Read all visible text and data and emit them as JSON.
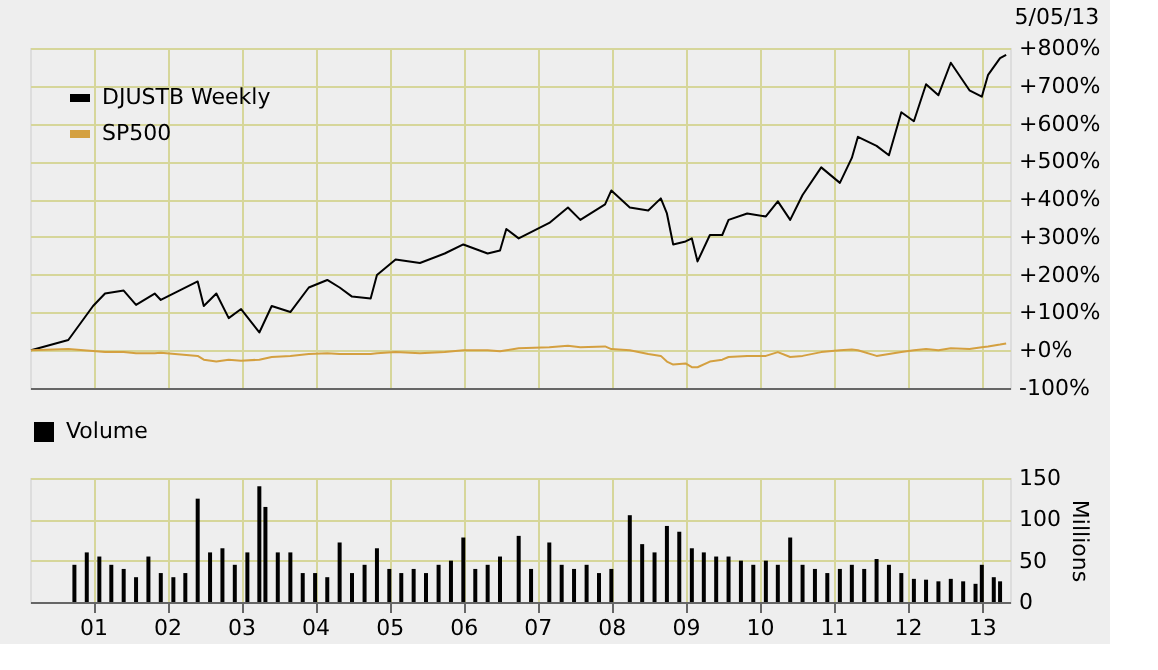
{
  "chart_data": [
    {
      "type": "line",
      "annotations": [
        "5/05/13"
      ],
      "x": [
        "2000-03",
        "2000-09",
        "2001-01",
        "2001-03",
        "2001-06",
        "2001-08",
        "2001-11",
        "2001-12",
        "2002-06",
        "2002-07",
        "2002-09",
        "2002-11",
        "2003-01",
        "2003-04",
        "2003-06",
        "2003-09",
        "2003-12",
        "2004-03",
        "2004-05",
        "2004-07",
        "2004-10",
        "2004-11",
        "2005-02",
        "2005-06",
        "2005-10",
        "2006-01",
        "2006-05",
        "2006-07",
        "2006-08",
        "2006-10",
        "2007-03",
        "2007-06",
        "2007-08",
        "2007-12",
        "2008-01",
        "2008-04",
        "2008-07",
        "2008-09",
        "2008-10",
        "2008-11",
        "2009-01",
        "2009-02",
        "2009-03",
        "2009-05",
        "2009-07",
        "2009-08",
        "2009-11",
        "2010-02",
        "2010-04",
        "2010-06",
        "2010-08",
        "2010-11",
        "2011-02",
        "2011-04",
        "2011-05",
        "2011-08",
        "2011-10",
        "2011-12",
        "2012-02",
        "2012-04",
        "2012-06",
        "2012-08",
        "2012-11",
        "2013-01",
        "2013-02",
        "2013-04",
        "2013-05"
      ],
      "series": [
        {
          "name": "DJUSTB Weekly",
          "color": "#000000",
          "values": [
            0,
            27,
            117,
            150,
            158,
            120,
            150,
            133,
            182,
            117,
            150,
            85,
            109,
            47,
            117,
            101,
            166,
            186,
            166,
            142,
            137,
            199,
            240,
            231,
            256,
            280,
            256,
            264,
            321,
            296,
            337,
            378,
            345,
            386,
            423,
            378,
            370,
            402,
            362,
            280,
            288,
            296,
            235,
            305,
            305,
            345,
            362,
            354,
            394,
            345,
            411,
            484,
            443,
            509,
            565,
            541,
            516,
            630,
            606,
            704,
            675,
            761,
            688,
            671,
            729,
            773,
            782
          ]
        },
        {
          "name": "SP500",
          "color": "#d4a040",
          "values": [
            0,
            3,
            -2,
            -5,
            -5,
            -8,
            -8,
            -7,
            -15,
            -25,
            -30,
            -25,
            -28,
            -25,
            -18,
            -15,
            -10,
            -8,
            -10,
            -10,
            -10,
            -8,
            -5,
            -8,
            -5,
            0,
            0,
            -3,
            0,
            5,
            8,
            12,
            8,
            10,
            3,
            0,
            -10,
            -15,
            -30,
            -38,
            -35,
            -45,
            -45,
            -30,
            -25,
            -18,
            -15,
            -15,
            -5,
            -18,
            -15,
            -5,
            0,
            2,
            0,
            -15,
            -10,
            -5,
            0,
            3,
            0,
            5,
            3,
            8,
            10,
            15,
            18
          ]
        }
      ],
      "xlim": [
        "2000-02-25",
        "2013-05-20"
      ],
      "xticks": [
        {
          "value": "2001-01-01",
          "label": null
        },
        {
          "value": "2002-01-01",
          "label": null
        },
        {
          "value": "2003-01-01",
          "label": null
        },
        {
          "value": "2004-01-01",
          "label": null
        },
        {
          "value": "2005-01-01",
          "label": null
        },
        {
          "value": "2006-01-01",
          "label": null
        },
        {
          "value": "2007-01-01",
          "label": null
        },
        {
          "value": "2008-01-01",
          "label": null
        },
        {
          "value": "2009-01-01",
          "label": null
        },
        {
          "value": "2010-01-01",
          "label": null
        },
        {
          "value": "2011-01-01",
          "label": null
        },
        {
          "value": "2012-01-01",
          "label": null
        },
        {
          "value": "2013-01-01",
          "label": null
        }
      ],
      "ylim": [
        -100,
        800
      ],
      "yticks": [
        {
          "value": -100,
          "label": "-100%"
        },
        {
          "value": 0,
          "label": "+0%"
        },
        {
          "value": 100,
          "label": "+100%"
        },
        {
          "value": 200,
          "label": "+200%"
        },
        {
          "value": 300,
          "label": "+300%"
        },
        {
          "value": 400,
          "label": "+400%"
        },
        {
          "value": 500,
          "label": "+500%"
        },
        {
          "value": 600,
          "label": "+600%"
        },
        {
          "value": 700,
          "label": "+700%"
        },
        {
          "value": 800,
          "label": "+800%"
        }
      ],
      "grid": true,
      "legend": "top left",
      "tick_labels": "y",
      "line_style": "solid"
    },
    {
      "type": "bar",
      "ylabel": "Millions",
      "x": [
        "2000-10",
        "2000-12",
        "2001-02",
        "2001-04",
        "2001-06",
        "2001-08",
        "2001-10",
        "2001-12",
        "2002-02",
        "2002-04",
        "2002-06",
        "2002-08",
        "2002-10",
        "2002-12",
        "2003-02",
        "2003-04",
        "2003-05",
        "2003-07",
        "2003-09",
        "2003-11",
        "2004-01",
        "2004-03",
        "2004-05",
        "2004-07",
        "2004-09",
        "2004-11",
        "2005-01",
        "2005-03",
        "2005-05",
        "2005-07",
        "2005-09",
        "2005-11",
        "2006-01",
        "2006-03",
        "2006-05",
        "2006-07",
        "2006-10",
        "2006-12",
        "2007-03",
        "2007-05",
        "2007-07",
        "2007-09",
        "2007-11",
        "2008-01",
        "2008-04",
        "2008-06",
        "2008-08",
        "2008-10",
        "2008-12",
        "2009-02",
        "2009-04",
        "2009-06",
        "2009-08",
        "2009-10",
        "2009-12",
        "2010-02",
        "2010-04",
        "2010-06",
        "2010-08",
        "2010-10",
        "2010-12",
        "2011-02",
        "2011-04",
        "2011-06",
        "2011-08",
        "2011-10",
        "2011-12",
        "2012-02",
        "2012-04",
        "2012-06",
        "2012-08",
        "2012-10",
        "2012-12",
        "2013-01",
        "2013-03",
        "2013-04"
      ],
      "series": [
        {
          "name": "Volume",
          "color": "#000000",
          "values": [
            45,
            60,
            55,
            45,
            40,
            30,
            55,
            35,
            30,
            35,
            125,
            60,
            65,
            45,
            60,
            140,
            115,
            60,
            60,
            35,
            35,
            30,
            72,
            35,
            45,
            65,
            40,
            35,
            40,
            35,
            45,
            50,
            78,
            40,
            45,
            55,
            80,
            40,
            72,
            45,
            40,
            45,
            35,
            40,
            105,
            70,
            60,
            92,
            85,
            65,
            60,
            55,
            55,
            50,
            45,
            50,
            45,
            78,
            45,
            40,
            35,
            40,
            45,
            40,
            52,
            45,
            35,
            28,
            27,
            25,
            28,
            25,
            22,
            45,
            30,
            25
          ]
        }
      ],
      "xlim": [
        "2000-02-25",
        "2013-05-20"
      ],
      "xticks": [
        {
          "value": "2001-01-01",
          "label": "01"
        },
        {
          "value": "2002-01-01",
          "label": "02"
        },
        {
          "value": "2003-01-01",
          "label": "03"
        },
        {
          "value": "2004-01-01",
          "label": "04"
        },
        {
          "value": "2005-01-01",
          "label": "05"
        },
        {
          "value": "2006-01-01",
          "label": "06"
        },
        {
          "value": "2007-01-01",
          "label": "07"
        },
        {
          "value": "2008-01-01",
          "label": "08"
        },
        {
          "value": "2009-01-01",
          "label": "09"
        },
        {
          "value": "2010-01-01",
          "label": "10"
        },
        {
          "value": "2011-01-01",
          "label": "11"
        },
        {
          "value": "2012-01-01",
          "label": "12"
        },
        {
          "value": "2013-01-01",
          "label": "13"
        }
      ],
      "ylim": [
        0,
        150
      ],
      "yticks": [
        0,
        50,
        100,
        150
      ],
      "grid": true,
      "legend": "top"
    }
  ]
}
